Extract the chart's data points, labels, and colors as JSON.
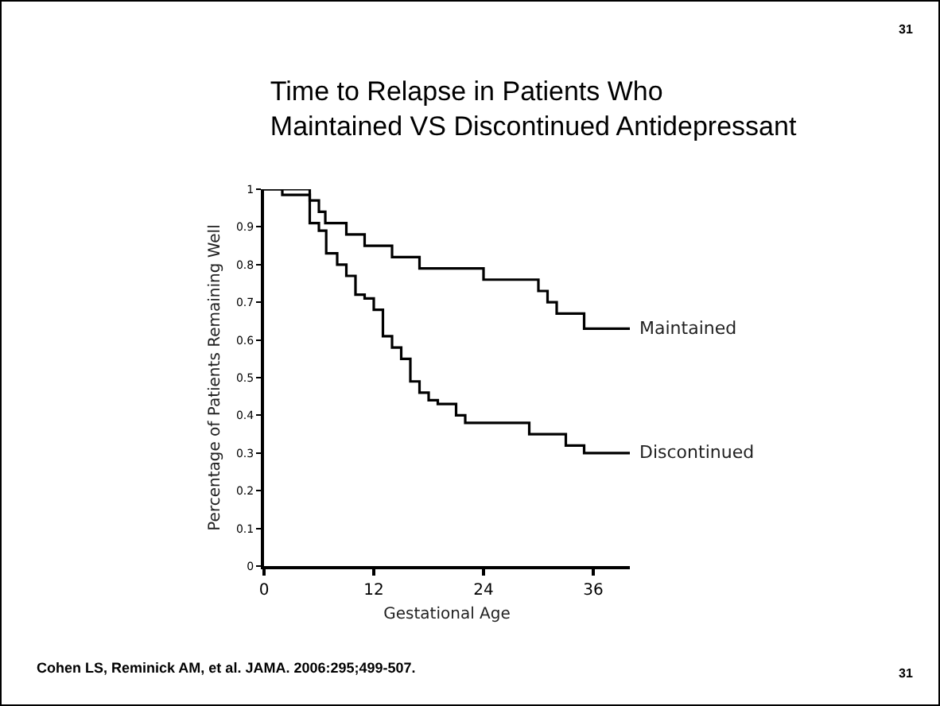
{
  "chart_data": {
    "type": "step",
    "title": "Time to Relapse in Patients Who\nMaintained VS Discontinued Antidepressant",
    "xlabel": "Gestational Age",
    "ylabel": "Percentage of Patients Remaining Well",
    "annotations": [
      "31",
      "31",
      "Cohen LS, Reminick AM, et al. JAMA. 2006:295;499-507."
    ],
    "xlim": [
      0,
      40
    ],
    "xticks": [
      0,
      12,
      24,
      36
    ],
    "ylim": [
      0,
      1
    ],
    "yticks": [
      0,
      0.1,
      0.2,
      0.3,
      0.4,
      0.5,
      0.6,
      0.7,
      0.8,
      0.9,
      1
    ],
    "grid": false,
    "legend": false,
    "line_style": "solid",
    "marker": "none",
    "series": [
      {
        "name": "Maintained",
        "color": "#000000",
        "x": [
          0,
          5,
          6,
          6.7,
          9,
          11,
          14,
          17,
          24,
          30,
          31,
          32,
          35,
          40
        ],
        "values": [
          1,
          0.97,
          0.94,
          0.91,
          0.88,
          0.85,
          0.82,
          0.79,
          0.76,
          0.73,
          0.7,
          0.67,
          0.63,
          0.63
        ]
      },
      {
        "name": "Discontinued",
        "color": "#000000",
        "x": [
          0,
          2,
          5,
          6,
          6.8,
          8,
          9,
          10,
          11,
          12,
          13,
          14,
          15,
          16,
          17,
          18,
          19,
          21,
          22,
          29,
          33,
          35,
          40
        ],
        "values": [
          1,
          0.985,
          0.91,
          0.89,
          0.83,
          0.8,
          0.77,
          0.72,
          0.71,
          0.68,
          0.61,
          0.58,
          0.55,
          0.49,
          0.46,
          0.44,
          0.43,
          0.4,
          0.38,
          0.35,
          0.32,
          0.3,
          0.3
        ]
      }
    ]
  }
}
